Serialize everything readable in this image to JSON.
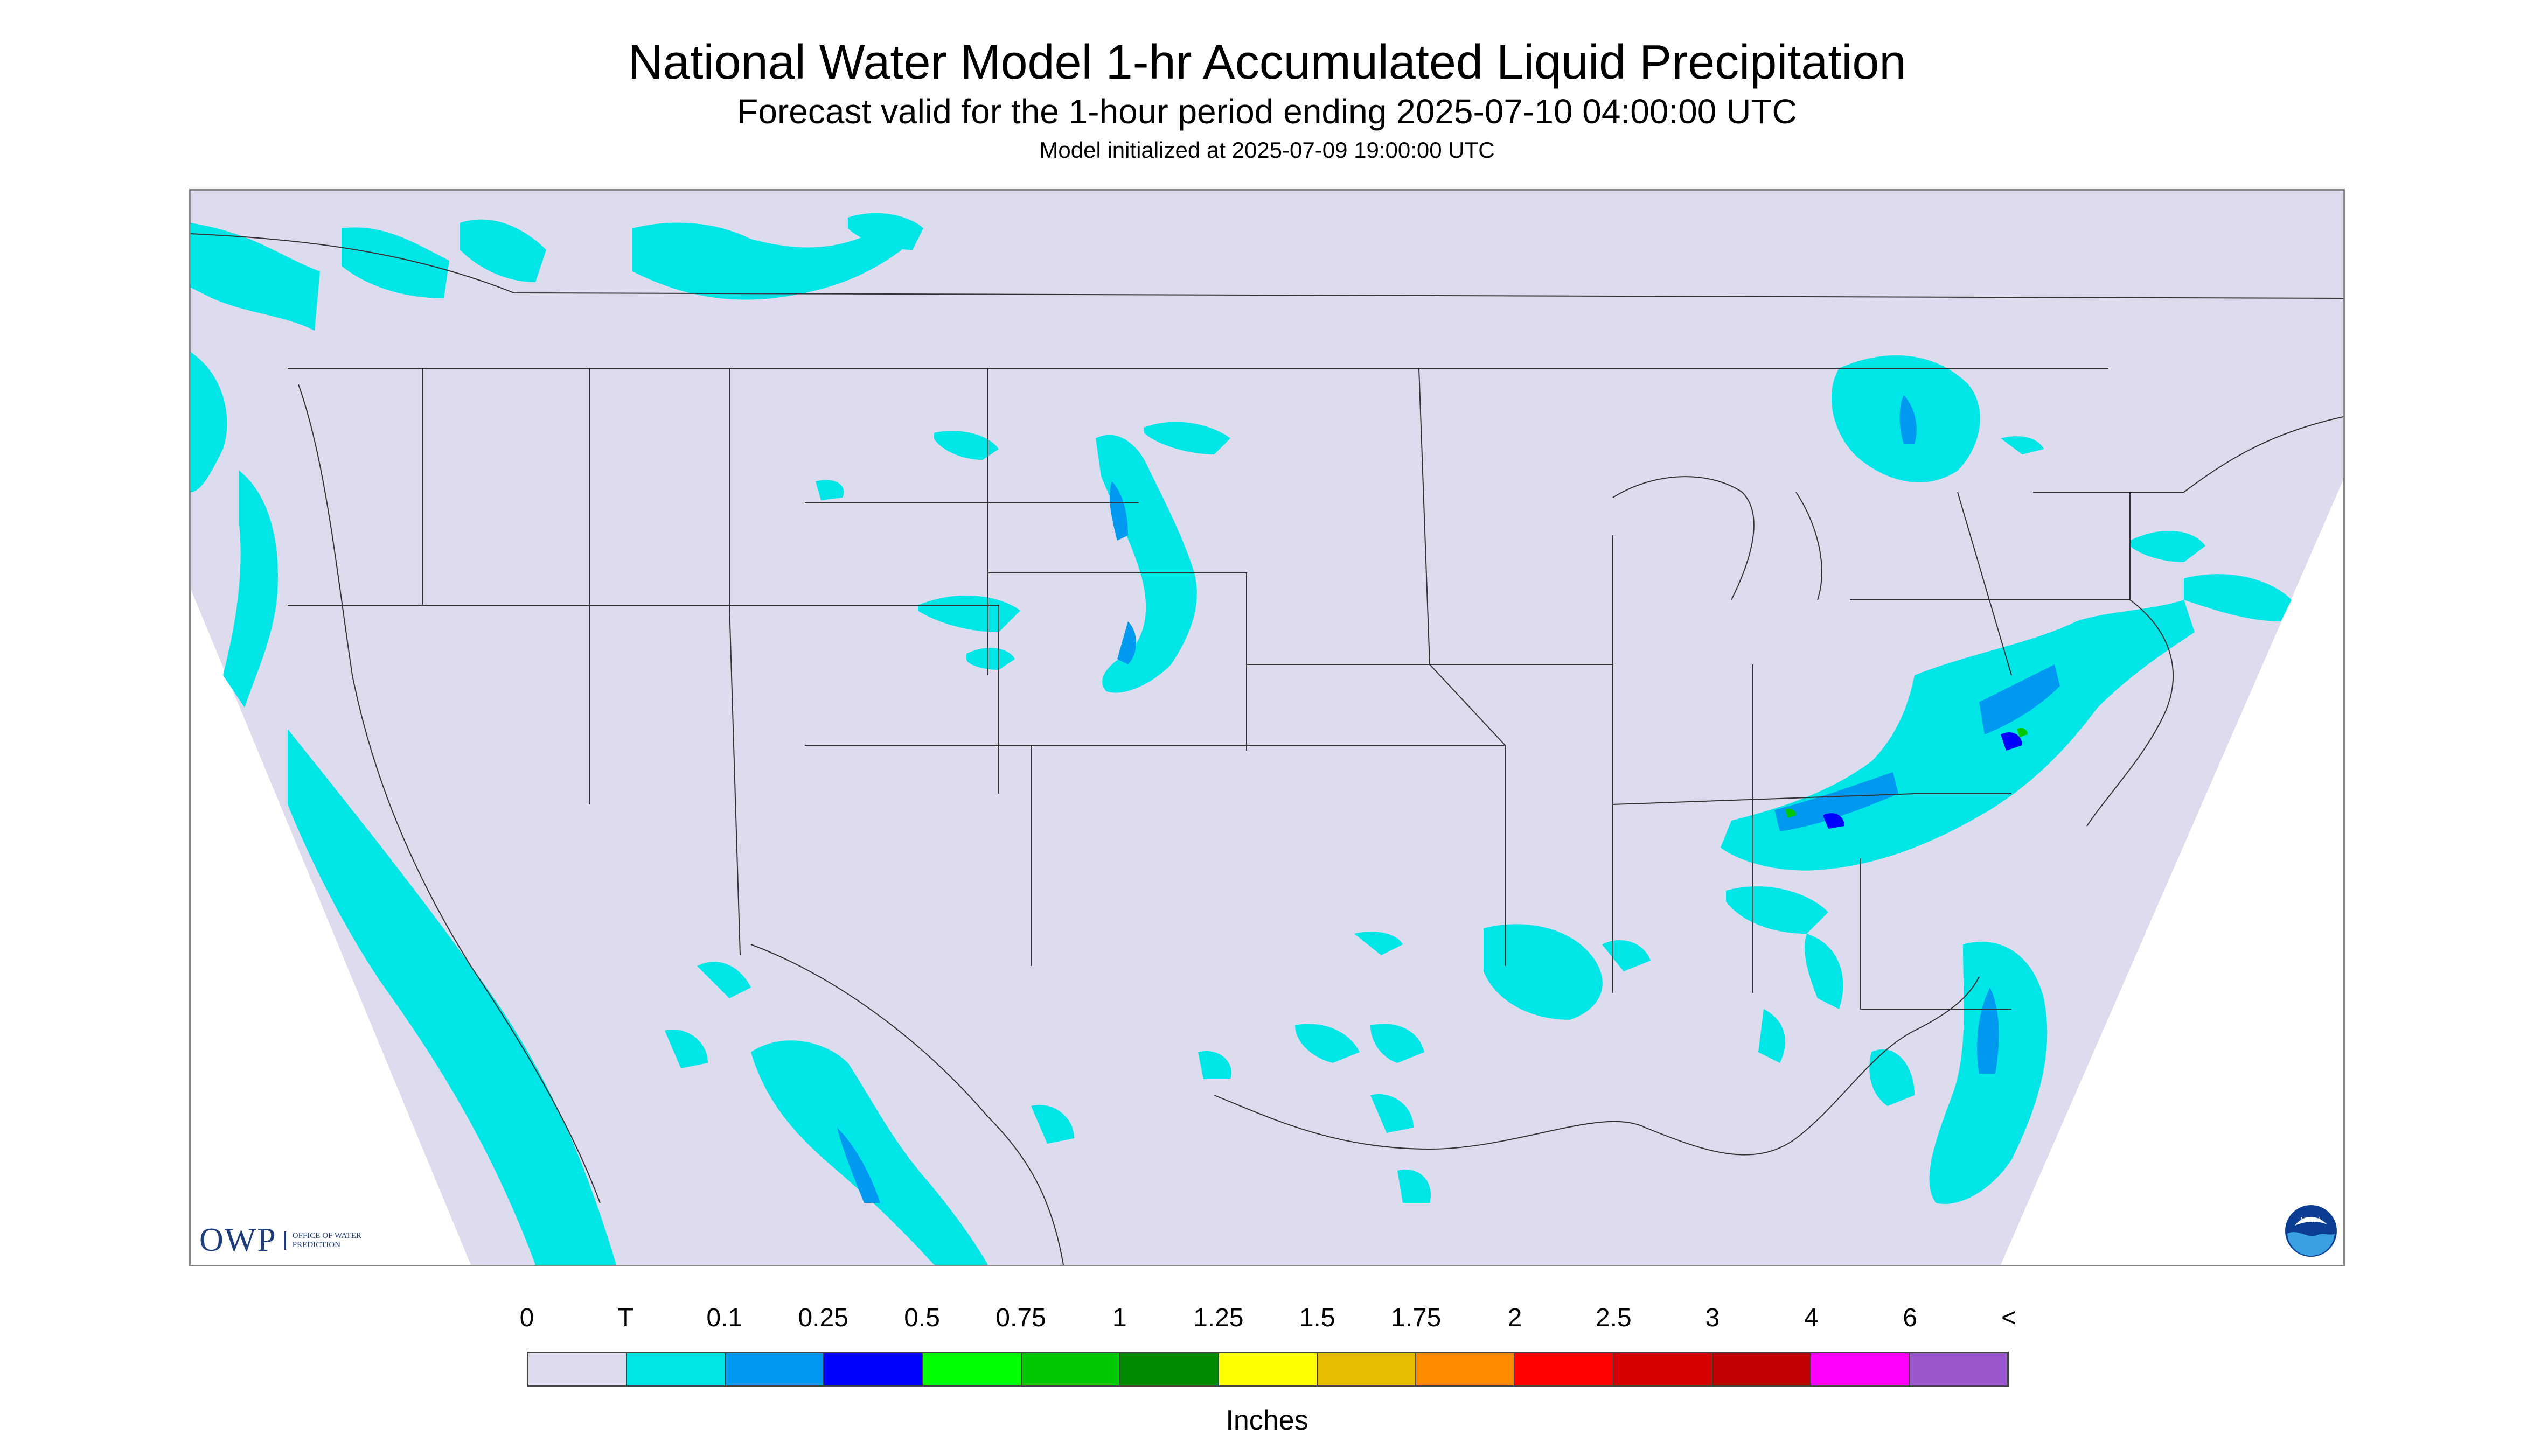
{
  "title": "National Water Model 1-hr Accumulated Liquid Precipitation",
  "subtitle": "Forecast valid for the 1-hour period ending 2025-07-10 04:00:00 UTC",
  "init_line": "Model initialized at 2025-07-09 19:00:00 UTC",
  "logo": {
    "owp_text": "OWP",
    "owp_subtext": "OFFICE OF WATER PREDICTION",
    "noaa_text": "NOAA"
  },
  "legend": {
    "labels": [
      "0",
      "T",
      "0.1",
      "0.25",
      "0.5",
      "0.75",
      "1",
      "1.25",
      "1.5",
      "1.75",
      "2",
      "2.5",
      "3",
      "4",
      "6",
      "<"
    ],
    "colors": [
      "#dcdcee",
      "#00e6e6",
      "#0099f0",
      "#0000ff",
      "#00ff00",
      "#00c800",
      "#008c00",
      "#ffff00",
      "#e6c000",
      "#ff8c00",
      "#ff0000",
      "#d70000",
      "#c00000",
      "#ff00ff",
      "#9955cc"
    ],
    "units": "Inches"
  },
  "colors": {
    "land": "#dcdcee",
    "precip_trace": "#00e6e6",
    "precip_light": "#0099f0",
    "precip_mod": "#0000ff",
    "precip_green": "#00c800",
    "border_lines": "#333333"
  }
}
